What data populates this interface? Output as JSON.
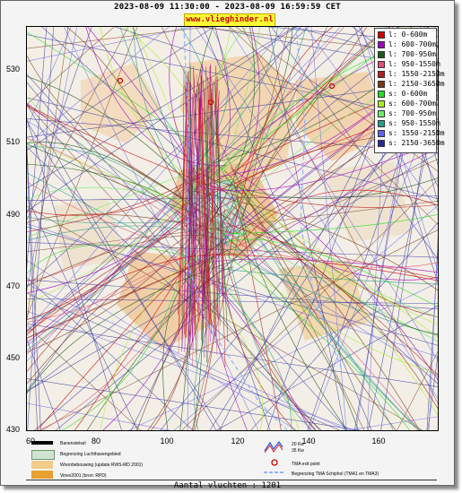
{
  "header": {
    "title": "2023-08-09 11:30:00 - 2023-08-09 16:59:59 CET",
    "brand": "www.vlieghinder.nl"
  },
  "axes": {
    "y_ticks": [
      "530",
      "510",
      "490",
      "470",
      "450",
      "430"
    ],
    "x_ticks": [
      "60",
      "80",
      "100",
      "120",
      "140",
      "160"
    ]
  },
  "legend": [
    {
      "label": "l: 0-600m",
      "color": "#d40000"
    },
    {
      "label": "l: 600-700m",
      "color": "#a000c0"
    },
    {
      "label": "l: 700-950m",
      "color": "#1a5a1a"
    },
    {
      "label": "l: 950-1550m",
      "color": "#e05078"
    },
    {
      "label": "l: 1550-2150m",
      "color": "#b02020"
    },
    {
      "label": "l: 2150-3650m",
      "color": "#7a3a18"
    },
    {
      "label": "s: 0-600m",
      "color": "#22dd22"
    },
    {
      "label": "s: 600-700m",
      "color": "#aaee22"
    },
    {
      "label": "s: 700-950m",
      "color": "#66ee66"
    },
    {
      "label": "s: 950-1550m",
      "color": "#2a9a8a"
    },
    {
      "label": "s: 1550-2150m",
      "color": "#6060ee"
    },
    {
      "label": "s: 2150-3650m",
      "color": "#2a2a9a"
    }
  ],
  "map_key": {
    "runway": "Banenstelsel",
    "airport_boundary": "Begrenzing Luchthavengebied",
    "housing": "Woonbebouwing (update RWS-MD 2001)",
    "vinex": "Vinex2001 (bron: RPD)",
    "wind_20": "20 Kw",
    "wind_35": "35 Kw",
    "tma_exit": "TMA exit point",
    "tma_boundary": "Begrenzing TMA Schiphol (TMA1 en TMA3)"
  },
  "footer": {
    "count": "Aantal vluchten : 1201"
  }
}
